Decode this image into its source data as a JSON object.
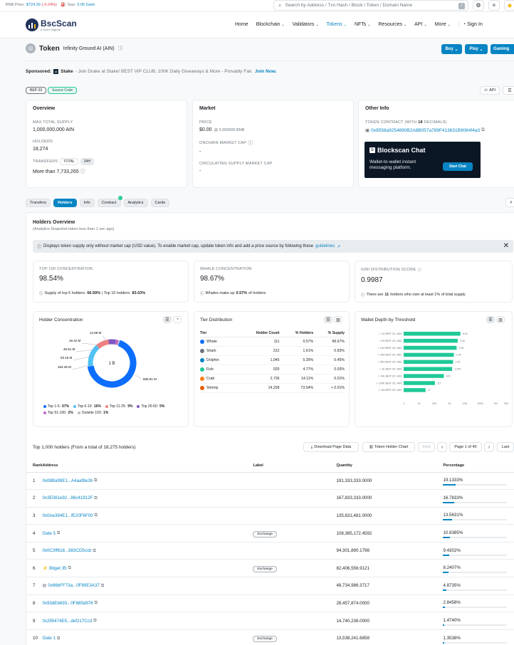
{
  "topbar": {
    "bnb_price_label": "BNB Price:",
    "bnb_price": "$724.39",
    "bnb_change": "(-0.24%)",
    "gas_label": "Gas:",
    "gas": "0.05 Gwei",
    "search_placeholder": "Search by Address / Txn Hash / Block / Token / Domain Name",
    "slash_key": "/"
  },
  "brand": {
    "name": "BscScan",
    "tagline": "A Scan Original"
  },
  "nav": {
    "items": [
      "Home",
      "Blockchain",
      "Validators",
      "Tokens",
      "NFTs",
      "Resources",
      "API",
      "More"
    ],
    "sign_in": "Sign In"
  },
  "token": {
    "label": "Token",
    "name": "Infinity Ground AI (AIN)",
    "buy": "Buy",
    "play": "Play",
    "gaming": "Gaming"
  },
  "sponsored": {
    "label": "Sponsored:",
    "brand": "Stake",
    "text": "- Join Drake at Stake! BEST VIP CLUB, 100K Daily Giveaways & More - Provably Fair.",
    "cta": "Join Now."
  },
  "tags": {
    "standard": "BEP-20",
    "source": "Source Code",
    "api": "API"
  },
  "overview": {
    "title": "Overview",
    "max_supply_label": "MAX TOTAL SUPPLY",
    "max_supply": "1,000,000,000 AIN",
    "holders_label": "HOLDERS",
    "holders": "18,274",
    "transfers_label": "TRANSFERS",
    "transfers_total": "TOTAL",
    "transfers_24h": "24H",
    "transfers": "More than 7,733,265"
  },
  "market": {
    "title": "Market",
    "price_label": "PRICE",
    "price": "$0.00",
    "price_bnb": "@ 0.000000 BNB",
    "onchain_label": "ONCHAIN MARKET CAP",
    "onchain": "-",
    "circ_label": "CIRCULATING SUPPLY MARKET CAP",
    "circ": "-"
  },
  "other": {
    "title": "Other Info",
    "contract_label_a": "TOKEN CONTRACT (WITH",
    "contract_decimals": "18",
    "contract_label_b": "DECIMALS)",
    "contract": "0x9558a9254890B2A8B057a789F413631B9084f4a3",
    "chat_title": "Blockscan Chat",
    "chat_text": "Wallet-to-wallet instant messaging platform.",
    "chat_btn": "Start Chat"
  },
  "tabs": [
    "Transfers",
    "Holders",
    "Info",
    "Contract",
    "Analytics",
    "Cards"
  ],
  "holders_overview": {
    "title": "Holders Overview",
    "subtitle": "(Analytics Snapshot taken less than 1 sec ago)",
    "notice": "Displays token supply only without market cap (USD value). To enable market cap, update token info and add a price source by following these",
    "notice_link": "guidelines"
  },
  "stats": [
    {
      "label": "TOP 100 CONCENTRATION",
      "value": "98.54%",
      "note_a": "Supply of top 5 holders:",
      "note_b": "66.59%",
      "note_c": "| Top 10 holders:",
      "note_d": "83.03%"
    },
    {
      "label": "WHALE CONCENTRATION",
      "value": "98.67%",
      "note_a": "Whales make up",
      "note_b": "0.57%",
      "note_c": "of holders",
      "note_d": ""
    },
    {
      "label": "GINI DISTRIBUTION SCORE",
      "value": "0.9987",
      "note_a": "There are",
      "note_b": "11",
      "note_c": "holders who own at least 1% of total supply",
      "note_d": ""
    }
  ],
  "concentration": {
    "title": "Holder Concentration",
    "center": "1 B",
    "labels": [
      "14.58 M",
      "16.42 M",
      "45.51 M",
      "93.16 M",
      "164.46 M",
      "665.91 M"
    ],
    "legend": [
      {
        "name": "Top 1-5:",
        "pct": "67%",
        "color": "#0d6efd"
      },
      {
        "name": "Top 6-10:",
        "pct": "16%",
        "color": "#4fc3f7"
      },
      {
        "name": "Top 11-25:",
        "pct": "9%",
        "color": "#f08080"
      },
      {
        "name": "Top 26-50:",
        "pct": "5%",
        "color": "#7e57c2"
      },
      {
        "name": "Top 51-100:",
        "pct": "2%",
        "color": "#ba68c8"
      },
      {
        "name": "Outside 100:",
        "pct": "1%",
        "color": "#bdbdbd"
      }
    ]
  },
  "tier": {
    "title": "Tier Distribution",
    "headers": [
      "Tier",
      "Holder Count",
      "% Holders",
      "% Supply"
    ],
    "rows": [
      {
        "tier": "Whale",
        "count": "111",
        "holders": "0.57%",
        "supply": "98.67%"
      },
      {
        "tier": "Shark",
        "count": "312",
        "holders": "1.61%",
        "supply": "0.83%"
      },
      {
        "tier": "Dolphin",
        "count": "1,045",
        "holders": "5.39%",
        "supply": "0.45%"
      },
      {
        "tier": "Fish",
        "count": "925",
        "holders": "4.77%",
        "supply": "0.03%"
      },
      {
        "tier": "Crab",
        "count": "2,736",
        "holders": "14.11%",
        "supply": "0.01%"
      },
      {
        "tier": "Shrimp",
        "count": "14,258",
        "holders": "73.54%",
        "supply": "< 0.01%"
      }
    ]
  },
  "chart_data": {
    "type": "bar",
    "title": "Wallet Depth by Threshold",
    "categories": [
      "> 10 BEP-20: AIN",
      "> 50 BEP-20: AIN",
      "> 100 BEP-20: AIN",
      "> 250 BEP-20: AIN",
      "> 500 BEP-20: AIN",
      "> 1k BEP-20: AIN",
      "> 10k BEP-20: AIN",
      "> 100k BEP-20: AIN",
      "> 1M BEP-20: AIN"
    ],
    "values": [
      5100,
      3400,
      2900,
      1900,
      1700,
      1470,
      423,
      111,
      27
    ],
    "value_labels": [
      "5.1K",
      "3.4K",
      "2.9K",
      "1.9K",
      "1.7K",
      "1.47K",
      "423",
      "111",
      "27"
    ],
    "xticks": [
      "1",
      "10",
      "100",
      "1K",
      "10K",
      "100K",
      "1M",
      "5M"
    ],
    "scale": "log",
    "orientation": "horizontal"
  },
  "holders_table": {
    "title": "Top 1,000 holders (From a total of 18,275 holders)",
    "download": "Download Page Data",
    "chart_btn": "Token Holder Chart",
    "first": "First",
    "page": "Page 1 of 40",
    "last": "Last",
    "headers": [
      "Rank",
      "Address",
      "Label",
      "Quantity",
      "Percentage"
    ],
    "rows": [
      {
        "rank": "1",
        "address": "0x08Ba99E1...A4aaf8e26",
        "label": "",
        "qty": "191,333,333.0000",
        "pct": "19.1333%",
        "frac": 0.191
      },
      {
        "rank": "2",
        "address": "0x3E081e92...86c41912F",
        "label": "",
        "qty": "167,833,333.0000",
        "pct": "16.7833%",
        "frac": 0.168
      },
      {
        "rank": "3",
        "address": "0x0Ae394E1...fE20F6F00",
        "label": "",
        "qty": "135,631,481.0000",
        "pct": "13.5631%",
        "frac": 0.136
      },
      {
        "rank": "4",
        "address": "Gate 5",
        "label": "Exchange",
        "qty": "108,385,172.4592",
        "pct": "10.8385%",
        "frac": 0.108
      },
      {
        "rank": "5",
        "address": "0x0C3ff618...883CD5ccb",
        "label": "",
        "qty": "94,301,890.1798",
        "pct": "9.4302%",
        "frac": 0.094
      },
      {
        "rank": "6",
        "address": "Bitget 35",
        "label": "Exchange",
        "qty": "82,406,556.9121",
        "pct": "8.2407%",
        "frac": 0.082
      },
      {
        "rank": "7",
        "address": "0x66bFF73a...0F89E3A37",
        "label": "",
        "qty": "48,734,986.3717",
        "pct": "4.8735%",
        "frac": 0.049
      },
      {
        "rank": "8",
        "address": "0x93dEb693...0F885d976",
        "label": "",
        "qty": "28,457,874.0000",
        "pct": "2.8458%",
        "frac": 0.028
      },
      {
        "rank": "9",
        "address": "0x295474E5...def217Cc3",
        "label": "",
        "qty": "14,740,236.0000",
        "pct": "1.4740%",
        "frac": 0.015
      },
      {
        "rank": "10",
        "address": "Gate 1",
        "label": "Exchange",
        "qty": "13,538,241.6858",
        "pct": "1.3538%",
        "frac": 0.014
      }
    ]
  }
}
